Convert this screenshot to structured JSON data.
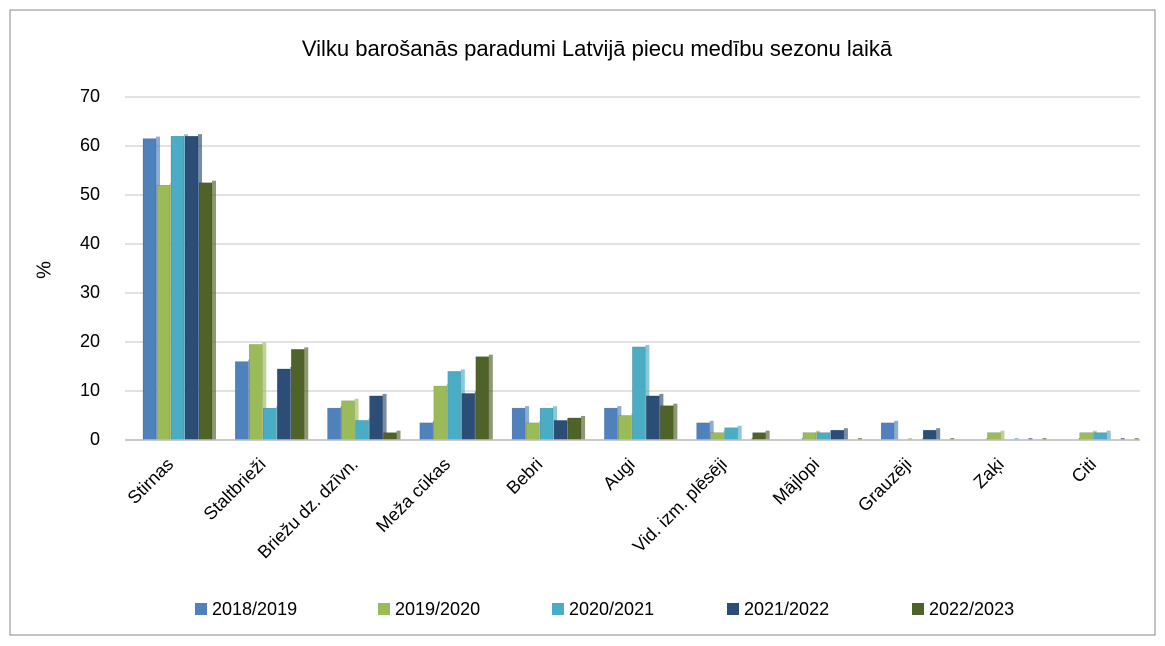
{
  "chart_data": {
    "type": "bar",
    "title": "Vilku barošanās paradumi Latvijā piecu medību sezonu laikā",
    "y_label": "%",
    "categories": [
      "Stirnas",
      "Staltbrieži",
      "Briežu dz. dzīvn.",
      "Meža cūkas",
      "Bebri",
      "Augi",
      "Vid. izm. plēsēji",
      "Mājlopi",
      "Grauzēji",
      "Zaķi",
      "Citi"
    ],
    "series": [
      {
        "name": "2018/2019",
        "color": "#4f81bd",
        "values": [
          61.5,
          16,
          6.5,
          3.5,
          6.5,
          6.5,
          3.5,
          0,
          3.5,
          0,
          0
        ]
      },
      {
        "name": "2019/2020",
        "color": "#9bbb59",
        "values": [
          52,
          19.5,
          8,
          11,
          3.5,
          5,
          1.5,
          1.5,
          0,
          1.5,
          1.5
        ]
      },
      {
        "name": "2020/2021",
        "color": "#4bacc6",
        "values": [
          62,
          6.5,
          4,
          14,
          6.5,
          19,
          2.5,
          1.5,
          0,
          0,
          1.5
        ]
      },
      {
        "name": "2021/2022",
        "color": "#2c4d75",
        "values": [
          62,
          14.5,
          9,
          9.5,
          4,
          9,
          0,
          2,
          2,
          0,
          0
        ]
      },
      {
        "name": "2022/2023",
        "color": "#4f6228",
        "values": [
          52.5,
          18.5,
          1.5,
          17,
          4.5,
          7,
          1.5,
          0,
          0,
          0,
          0
        ]
      }
    ],
    "ylim": [
      0,
      70
    ],
    "yticks": [
      0,
      10,
      20,
      30,
      40,
      50,
      60,
      70
    ],
    "grid": true,
    "legend": "bottom"
  }
}
